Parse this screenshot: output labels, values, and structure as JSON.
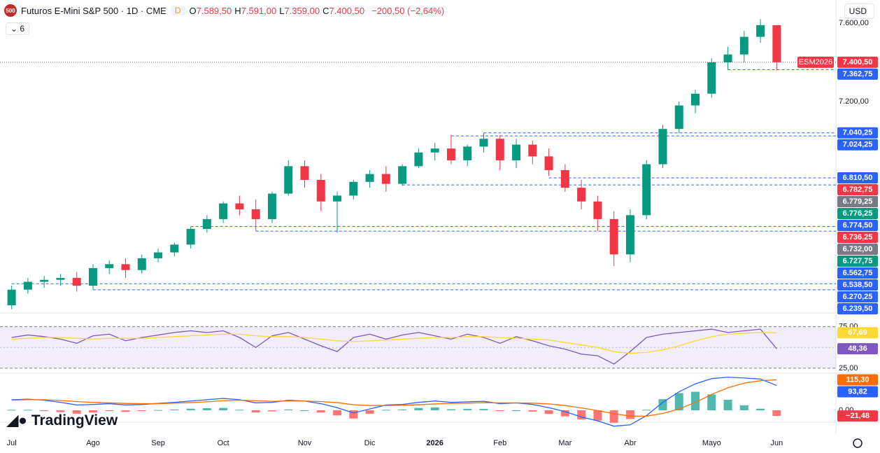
{
  "header": {
    "logo": "500",
    "title": "Futuros E-Mini S&P 500 · 1D · CME",
    "flag": "D",
    "ohlc": [
      {
        "key": "O",
        "text": "7.589,50"
      },
      {
        "key": "H",
        "text": "7.591,00"
      },
      {
        "key": "L",
        "text": "7.359,00"
      },
      {
        "key": "C",
        "text": "7.400,50"
      }
    ],
    "change": "−200,50 (−2,64%)",
    "indicators": "6",
    "currency": "USD",
    "brand": "TradingView"
  },
  "chart_data": [
    {
      "type": "candlestick",
      "up_color": "#089981",
      "down_color": "#f23645",
      "symbol_tag": "ESM2026",
      "categories": [
        "Jul",
        null,
        null,
        null,
        null,
        "Ago",
        null,
        null,
        null,
        "Sep",
        null,
        null,
        null,
        "Oct",
        null,
        null,
        null,
        null,
        "Nov",
        null,
        null,
        null,
        "Dic",
        null,
        null,
        null,
        "2026",
        null,
        null,
        null,
        "Feb",
        null,
        null,
        null,
        "Mar",
        null,
        null,
        null,
        "Abr",
        null,
        null,
        null,
        null,
        "Mayo",
        null,
        null,
        null,
        "Jun"
      ],
      "open": [
        6160,
        6240,
        6280,
        6290,
        6300,
        6260,
        6350,
        6370,
        6340,
        6400,
        6430,
        6470,
        6550,
        6600,
        6680,
        6650,
        6600,
        6730,
        6870,
        6800,
        6690,
        6720,
        6790,
        6830,
        6780,
        6870,
        6940,
        6960,
        6900,
        6970,
        7010,
        6900,
        6980,
        6920,
        6850,
        6760,
        6690,
        6600,
        6420,
        6620,
        6880,
        7060,
        7180,
        7240,
        7400,
        7440,
        7530,
        7589.5
      ],
      "high": [
        6260,
        6300,
        6310,
        6320,
        6330,
        6370,
        6390,
        6400,
        6420,
        6450,
        6480,
        6560,
        6620,
        6690,
        6720,
        6700,
        6740,
        6900,
        6900,
        6830,
        6740,
        6800,
        6850,
        6870,
        6880,
        6960,
        6990,
        7030,
        6980,
        7040,
        7030,
        7010,
        7000,
        6960,
        6880,
        6800,
        6720,
        6640,
        6650,
        6900,
        7080,
        7200,
        7260,
        7420,
        7480,
        7560,
        7620,
        7591
      ],
      "low": [
        6140,
        6220,
        6250,
        6260,
        6230,
        6240,
        6320,
        6300,
        6320,
        6380,
        6410,
        6450,
        6530,
        6580,
        6620,
        6540,
        6580,
        6720,
        6760,
        6640,
        6530,
        6700,
        6760,
        6740,
        6770,
        6860,
        6900,
        6880,
        6870,
        6940,
        6850,
        6860,
        6880,
        6820,
        6740,
        6650,
        6540,
        6360,
        6380,
        6600,
        6860,
        7040,
        7140,
        7220,
        7360,
        7400,
        7500,
        7359
      ],
      "close": [
        6240,
        6280,
        6290,
        6300,
        6260,
        6350,
        6370,
        6340,
        6400,
        6430,
        6470,
        6550,
        6600,
        6680,
        6650,
        6600,
        6730,
        6870,
        6800,
        6690,
        6720,
        6790,
        6830,
        6780,
        6870,
        6940,
        6960,
        6900,
        6970,
        7010,
        6900,
        6980,
        6920,
        6850,
        6760,
        6690,
        6600,
        6420,
        6620,
        6880,
        7060,
        7180,
        7240,
        7400,
        7440,
        7530,
        7590,
        7400.5
      ],
      "ylim": [
        6121,
        7718
      ],
      "yticks": [
        {
          "value": 7600,
          "label": "7.600,00"
        },
        {
          "value": 7200,
          "label": "7.200,00"
        }
      ],
      "price_tags": [
        {
          "value": 7400.5,
          "label": "7.400,50",
          "color": "#f23645",
          "dashed": false
        },
        {
          "value": 7362.75,
          "label": "7.362,75",
          "color": "#2962ff",
          "dashed": true
        },
        {
          "value": 7040.25,
          "label": "7.040,25",
          "color": "#2962ff",
          "dashed": true
        },
        {
          "value": 7024.25,
          "label": "7.024,25",
          "color": "#2962ff",
          "dashed": true
        },
        {
          "value": 6810.5,
          "label": "6.810,50",
          "color": "#2962ff",
          "dashed": true
        },
        {
          "value": 6782.75,
          "label": "6.782,75",
          "color": "#f23645",
          "dashed": false
        },
        {
          "value": 6779.25,
          "label": "6.779,25",
          "color": "#787b86",
          "dashed": false
        },
        {
          "value": 6776.25,
          "label": "6.776,25",
          "color": "#089981",
          "dashed": false
        },
        {
          "value": 6774.5,
          "label": "6.774,50",
          "color": "#2962ff",
          "dashed": true
        },
        {
          "value": 6736.25,
          "label": "6.736,25",
          "color": "#f23645",
          "dashed": false
        },
        {
          "value": 6732,
          "label": "6.732,00",
          "color": "#787b86",
          "dashed": false
        },
        {
          "value": 6727.75,
          "label": "6.727,75",
          "color": "#089981",
          "dashed": false
        },
        {
          "value": 6562.75,
          "label": "6.562,75",
          "color": "#2962ff",
          "dashed": true
        },
        {
          "value": 6538.5,
          "label": "6.538,50",
          "color": "#2962ff",
          "dashed": true
        },
        {
          "value": 6270.25,
          "label": "6.270,25",
          "color": "#2962ff",
          "dashed": true
        },
        {
          "value": 6239.5,
          "label": "6.239,50",
          "color": "#2962ff",
          "dashed": true
        }
      ]
    },
    {
      "type": "line",
      "ylim": [
        19,
        89
      ],
      "yticks": [
        {
          "value": 75,
          "label": "75,00"
        },
        {
          "value": 25,
          "label": "25,00"
        }
      ],
      "band": [
        25,
        75
      ],
      "band_color": "#7e57c2",
      "series": [
        {
          "name": "RSI",
          "color": "#7e57c2",
          "values": [
            62,
            65,
            63,
            60,
            55,
            64,
            66,
            58,
            62,
            65,
            68,
            70,
            68,
            70,
            62,
            50,
            64,
            68,
            60,
            52,
            45,
            62,
            66,
            60,
            65,
            68,
            64,
            60,
            66,
            62,
            55,
            63,
            58,
            52,
            48,
            42,
            40,
            30,
            45,
            62,
            66,
            68,
            70,
            72,
            68,
            70,
            72,
            48.36
          ],
          "tag": {
            "value": 48.36,
            "label": "48,36"
          }
        },
        {
          "name": "RSI MA",
          "color": "#fdd835",
          "values": [
            60,
            61,
            62,
            62,
            61,
            60,
            61,
            61,
            61,
            62,
            63,
            64,
            65,
            66,
            66,
            64,
            63,
            63,
            62,
            60,
            58,
            57,
            58,
            59,
            60,
            61,
            62,
            62,
            63,
            63,
            62,
            61,
            60,
            59,
            56,
            53,
            50,
            45,
            43,
            44,
            47,
            52,
            58,
            63,
            66,
            67,
            68,
            67.69
          ],
          "tag": {
            "value": 67.69,
            "label": "67,69"
          }
        }
      ]
    },
    {
      "type": "macd",
      "ylim": [
        -45,
        135
      ],
      "yticks": [
        {
          "value": 0,
          "label": "0,00"
        }
      ],
      "series": [
        {
          "name": "MACD",
          "color": "#2962ff",
          "values": [
            40,
            42,
            38,
            30,
            20,
            22,
            25,
            20,
            22,
            26,
            30,
            35,
            40,
            45,
            40,
            28,
            30,
            38,
            35,
            25,
            10,
            -10,
            5,
            20,
            22,
            30,
            35,
            30,
            32,
            34,
            25,
            28,
            22,
            10,
            -5,
            -25,
            -40,
            -60,
            -55,
            -20,
            30,
            70,
            100,
            120,
            125,
            122,
            118,
            93.82
          ],
          "tag": {
            "value": 93.82,
            "label": "93,82"
          }
        },
        {
          "name": "Signal",
          "color": "#ff6d00",
          "values": [
            38,
            40,
            40,
            37,
            33,
            30,
            28,
            26,
            25,
            25,
            27,
            29,
            32,
            36,
            38,
            36,
            34,
            35,
            35,
            33,
            29,
            21,
            18,
            18,
            19,
            21,
            24,
            26,
            27,
            29,
            28,
            28,
            27,
            24,
            18,
            9,
            -1,
            -13,
            -22,
            -22,
            -12,
            5,
            30,
            60,
            85,
            103,
            112,
            115.3
          ],
          "tag": {
            "value": 115.3,
            "label": "115,30"
          }
        }
      ],
      "histogram": {
        "up_color": "#26a69a",
        "down_color": "#ff5252",
        "values": [
          2,
          2,
          -2,
          -7,
          -13,
          -8,
          -3,
          -6,
          -3,
          1,
          3,
          6,
          8,
          9,
          2,
          -8,
          -4,
          3,
          0,
          -8,
          -19,
          -31,
          -13,
          2,
          3,
          9,
          11,
          4,
          5,
          5,
          -3,
          0,
          -5,
          -14,
          -23,
          -34,
          -39,
          -47,
          -33,
          2,
          42,
          65,
          70,
          60,
          40,
          19,
          6,
          -21.48
        ],
        "tag": {
          "value": -21.48,
          "label": "−21,48",
          "color": "#f23645"
        }
      }
    }
  ]
}
